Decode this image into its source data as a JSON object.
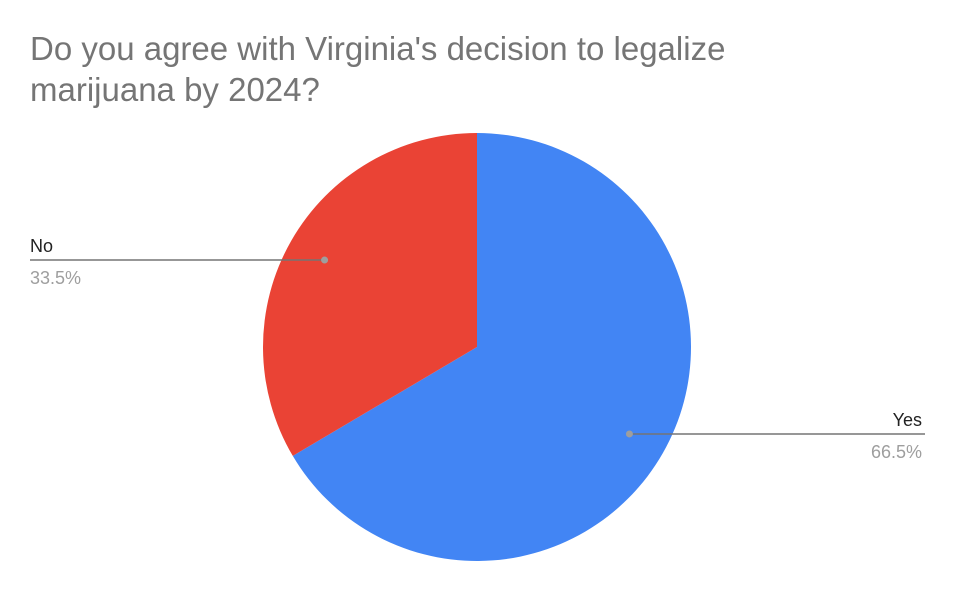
{
  "chart_data": {
    "type": "pie",
    "title_lines": [
      "Do you agree with Virginia's decision to legalize",
      "marijuana by 2024?"
    ],
    "slices": [
      {
        "label": "Yes",
        "value": 66.5,
        "percent_label": "66.5%",
        "color": "#4285f4"
      },
      {
        "label": "No",
        "value": 33.5,
        "percent_label": "33.5%",
        "color": "#ea4335"
      }
    ],
    "start_angle_deg": 0,
    "direction": "clockwise",
    "label_style": "callout-lines",
    "leader_color": "#757575",
    "dot_color": "#9e9e9e"
  }
}
